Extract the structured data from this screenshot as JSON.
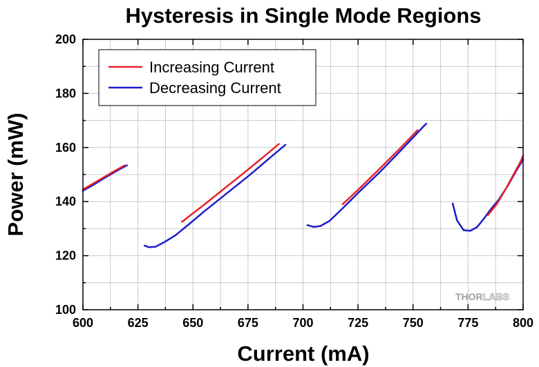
{
  "chart_data": {
    "type": "line",
    "title": "Hysteresis in Single Mode Regions",
    "xlabel": "Current (mA)",
    "ylabel": "Power (mW)",
    "xlim": [
      600,
      800
    ],
    "ylim": [
      100,
      200
    ],
    "x_ticks": [
      600,
      625,
      650,
      675,
      700,
      725,
      750,
      775,
      800
    ],
    "y_ticks": [
      100,
      120,
      140,
      160,
      180,
      200
    ],
    "grid": true,
    "legend_position": "top-left",
    "series": [
      {
        "name": "Increasing Current",
        "color": "#e8202a",
        "segments": [
          [
            [
              600,
              144.5
            ],
            [
              605,
              146.8
            ],
            [
              610,
              149.2
            ],
            [
              615,
              151.6
            ],
            [
              619,
              153.4
            ]
          ],
          [
            [
              645,
              132.5
            ],
            [
              655,
              138.8
            ],
            [
              665,
              145.3
            ],
            [
              675,
              151.8
            ],
            [
              685,
              158.5
            ],
            [
              689,
              161.3
            ]
          ],
          [
            [
              718,
              139.0
            ],
            [
              725,
              144.3
            ],
            [
              735,
              152.3
            ],
            [
              745,
              160.4
            ],
            [
              752,
              166.4
            ]
          ],
          [
            [
              784,
              135.0
            ],
            [
              788,
              139.0
            ],
            [
              792,
              144.5
            ],
            [
              796,
              150.5
            ],
            [
              799,
              155.0
            ],
            [
              800,
              157.0
            ]
          ]
        ]
      },
      {
        "name": "Decreasing Current",
        "color": "#1c1ccc",
        "segments": [
          [
            [
              600,
              144.0
            ],
            [
              605,
              146.3
            ],
            [
              610,
              148.8
            ],
            [
              615,
              151.2
            ],
            [
              620,
              153.4
            ]
          ],
          [
            [
              628,
              123.7
            ],
            [
              630,
              123.1
            ],
            [
              633,
              123.3
            ],
            [
              637,
              125.0
            ],
            [
              642,
              127.5
            ],
            [
              648,
              131.5
            ],
            [
              655,
              136.3
            ],
            [
              665,
              142.8
            ],
            [
              675,
              149.3
            ],
            [
              685,
              156.2
            ],
            [
              692,
              161.0
            ]
          ],
          [
            [
              702,
              131.3
            ],
            [
              705,
              130.6
            ],
            [
              708,
              131.0
            ],
            [
              712,
              132.8
            ],
            [
              718,
              137.5
            ],
            [
              725,
              143.2
            ],
            [
              735,
              151.0
            ],
            [
              745,
              159.4
            ],
            [
              755,
              168.0
            ],
            [
              756,
              168.8
            ]
          ],
          [
            [
              768,
              139.3
            ],
            [
              770,
              133.0
            ],
            [
              773,
              129.4
            ],
            [
              776,
              129.2
            ],
            [
              779,
              130.5
            ],
            [
              782,
              133.5
            ],
            [
              785,
              136.8
            ],
            [
              789,
              140.8
            ],
            [
              793,
              145.8
            ],
            [
              797,
              151.5
            ],
            [
              800,
              155.5
            ]
          ]
        ]
      }
    ]
  },
  "watermark": {
    "part1": "THOR",
    "part2": "LABS"
  }
}
